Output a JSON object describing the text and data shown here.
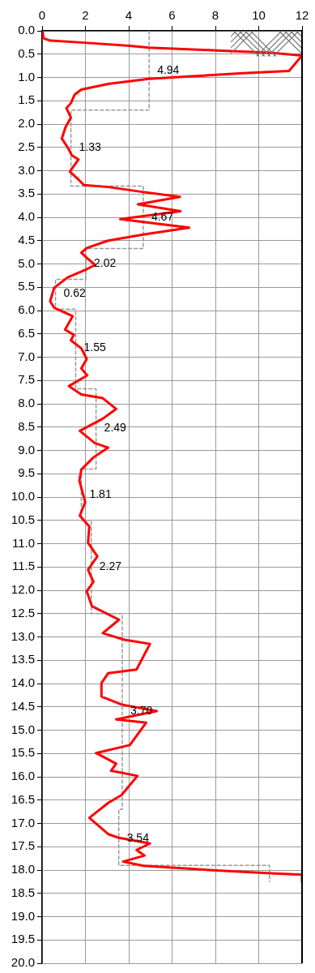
{
  "chart_data": {
    "type": "line",
    "xlim": [
      0,
      12
    ],
    "xticks": [
      0,
      2,
      4,
      6,
      8,
      10,
      12
    ],
    "ylim": [
      20,
      0
    ],
    "yticks": [
      {
        "value": 0,
        "label": "0.0"
      },
      0.5,
      {
        "value": 1,
        "label": "1.0"
      },
      1.5,
      {
        "value": 2,
        "label": "2.0"
      },
      2.5,
      {
        "value": 3,
        "label": "3.0"
      },
      3.5,
      {
        "value": 4,
        "label": "4.0"
      },
      4.5,
      {
        "value": 5,
        "label": "5.0"
      },
      5.5,
      {
        "value": 6,
        "label": "6.0"
      },
      6.5,
      {
        "value": 7,
        "label": "7.0"
      },
      7.5,
      {
        "value": 8,
        "label": "8.0"
      },
      8.5,
      {
        "value": 9,
        "label": "9.0"
      },
      9.5,
      {
        "value": 10,
        "label": "10.0"
      },
      10.5,
      {
        "value": 11,
        "label": "11.0"
      },
      11.5,
      {
        "value": 12,
        "label": "12.0"
      },
      12.5,
      {
        "value": 13,
        "label": "13.0"
      },
      13.5,
      {
        "value": 14,
        "label": "14.0"
      },
      14.5,
      {
        "value": 15,
        "label": "15.0"
      },
      15.5,
      {
        "value": 16,
        "label": "16.0"
      },
      16.5,
      {
        "value": 17,
        "label": "17.0"
      },
      17.5,
      {
        "value": 18,
        "label": "18.0"
      },
      18.5,
      {
        "value": 19,
        "label": "19.0"
      },
      19.5,
      {
        "value": 20,
        "label": "20.0"
      }
    ],
    "grid": true,
    "legend": false,
    "marker": "none",
    "series": [
      {
        "type": "line",
        "color": "#ff0000",
        "line_style": "solid",
        "x": [
          0.02,
          0.06,
          0.37,
          1.8,
          4.05,
          4.92,
          8.04,
          10.53,
          12.0,
          11.4,
          9.28,
          6.79,
          4.92,
          3.05,
          1.81,
          1.5,
          1.33,
          1.12,
          1.33,
          1.08,
          0.91,
          1.18,
          1.37,
          1.68,
          1.28,
          1.68,
          1.93,
          3.05,
          4.55,
          6.36,
          4.42,
          6.39,
          3.61,
          6.79,
          4.67,
          3.05,
          2.06,
          1.81,
          2.06,
          2.45,
          1.99,
          1.18,
          0.56,
          0.37,
          0.56,
          1.41,
          1.06,
          1.46,
          1.33,
          1.81,
          2.06,
          1.81,
          2.08,
          1.24,
          1.81,
          2.8,
          3.42,
          2.8,
          1.74,
          2.43,
          3.05,
          2.37,
          1.81,
          1.72,
          1.99,
          1.74,
          2.18,
          2.12,
          2.55,
          2.12,
          2.37,
          2.06,
          2.3,
          3.55,
          2.8,
          3.8,
          4.98,
          4.36,
          3.05,
          2.74,
          2.74,
          3.67,
          5.29,
          3.42,
          4.8,
          4.05,
          2.49,
          3.42,
          3.18,
          4.4,
          3.67,
          3.05,
          2.18,
          3.05,
          3.55,
          4.98,
          4.36,
          4.73,
          3.74,
          4.67,
          8.04,
          10.53,
          12.0,
          12.0
        ],
        "values": [
          0.0,
          0.16,
          0.21,
          0.25,
          0.32,
          0.36,
          0.42,
          0.47,
          0.53,
          0.86,
          0.91,
          0.98,
          1.03,
          1.14,
          1.26,
          1.37,
          1.55,
          1.66,
          1.86,
          2.07,
          2.31,
          2.5,
          2.67,
          2.76,
          3.02,
          3.19,
          3.31,
          3.35,
          3.45,
          3.56,
          3.72,
          3.87,
          4.04,
          4.22,
          4.37,
          4.5,
          4.66,
          4.76,
          4.87,
          5.02,
          5.13,
          5.29,
          5.51,
          5.8,
          5.94,
          6.12,
          6.41,
          6.52,
          6.64,
          6.81,
          7.04,
          7.24,
          7.39,
          7.62,
          7.8,
          7.88,
          8.11,
          8.32,
          8.58,
          8.84,
          8.94,
          9.15,
          9.41,
          9.65,
          10.11,
          10.4,
          10.63,
          10.98,
          11.27,
          11.56,
          11.82,
          12.02,
          12.34,
          12.63,
          12.92,
          13.06,
          13.15,
          13.7,
          13.78,
          13.99,
          14.28,
          14.45,
          14.59,
          14.77,
          14.84,
          15.32,
          15.49,
          15.72,
          15.87,
          15.98,
          16.39,
          16.56,
          16.88,
          17.23,
          17.31,
          17.43,
          17.57,
          17.69,
          17.82,
          17.91,
          18.01,
          18.07,
          18.1,
          18.25
        ]
      },
      {
        "type": "line",
        "color": "#999999",
        "line_style": "dashed",
        "x": [
          4.94,
          4.94,
          1.33,
          1.33,
          4.67,
          4.67,
          2.02,
          2.02,
          0.62,
          0.62,
          1.55,
          1.55,
          2.49,
          2.49,
          1.81,
          1.81,
          2.27,
          2.27,
          3.7,
          3.7,
          3.54,
          3.54,
          10.5,
          10.5
        ],
        "values": [
          0,
          1.7,
          1.7,
          3.33,
          3.33,
          4.67,
          4.67,
          5.33,
          5.33,
          5.97,
          5.97,
          7.68,
          7.68,
          9.4,
          9.4,
          10.5,
          10.5,
          12.5,
          12.5,
          16.7,
          16.7,
          17.9,
          17.9,
          18.25
        ]
      }
    ],
    "annotations": [
      {
        "text": "4.94",
        "x": 4.94,
        "y": 0.86
      },
      {
        "text": "1.33",
        "x": 1.33,
        "y": 2.5
      },
      {
        "text": "4.67",
        "x": 4.67,
        "y": 4.0
      },
      {
        "text": "2.02",
        "x": 2.02,
        "y": 5.0
      },
      {
        "text": "0.62",
        "x": 0.62,
        "y": 5.64
      },
      {
        "text": "1.55",
        "x": 1.55,
        "y": 6.81
      },
      {
        "text": "2.49",
        "x": 2.49,
        "y": 8.53
      },
      {
        "text": "1.81",
        "x": 1.81,
        "y": 9.95
      },
      {
        "text": "2.27",
        "x": 2.27,
        "y": 11.5
      },
      {
        "text": "3.70",
        "x": 3.7,
        "y": 14.6
      },
      {
        "text": "3.54",
        "x": 3.54,
        "y": 17.33
      }
    ]
  }
}
